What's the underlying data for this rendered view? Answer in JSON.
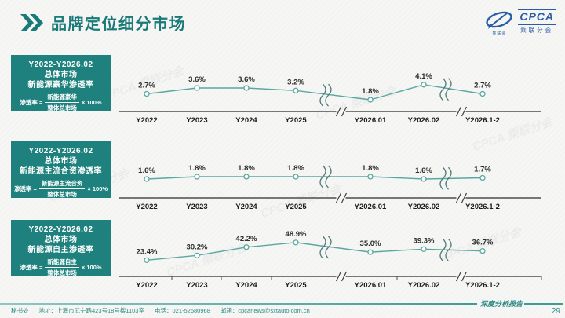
{
  "header": {
    "title": "品牌定位细分市场"
  },
  "logo": {
    "name": "CPCA",
    "subtitle": "乘联分会",
    "swoosh_label": "乘联会"
  },
  "watermark": "CPCA 乘联分会",
  "colors": {
    "teal_box": "#1E817D",
    "title_teal": "#1A7A78",
    "line": "#5AA7A1",
    "axis": "#4d4d4d",
    "break_mark": "#4E7A78",
    "footer_teal": "#2E8B88",
    "logo_blue": "#2A5DA8",
    "background": "#f6f6f4"
  },
  "sections": [
    {
      "box": {
        "period": "Y2022-Y2026.02",
        "market": "总体市场",
        "metric": "新能源豪华渗透率",
        "formula_prefix": "渗透率 =",
        "numerator": "新能源豪华",
        "denominator": "整体总市场",
        "suffix": "× 100%"
      }
    },
    {
      "box": {
        "period": "Y2022-Y2026.02",
        "market": "总体市场",
        "metric": "新能源主流合资渗透率",
        "formula_prefix": "渗透率 =",
        "numerator": "新能源主流合资",
        "denominator": "整体总市场",
        "suffix": "× 100%"
      }
    },
    {
      "box": {
        "period": "Y2022-Y2026.02",
        "market": "总体市场",
        "metric": "新能源自主渗透率",
        "formula_prefix": "渗透率 =",
        "numerator": "新能源自主",
        "denominator": "整体总市场",
        "suffix": "× 100%"
      }
    }
  ],
  "chart_data": [
    {
      "type": "line",
      "title": "Y2022-Y2026.02 总体市场 新能源豪华渗透率",
      "categories": [
        "Y2022",
        "Y2023",
        "Y2024",
        "Y2025",
        "Y2026.01",
        "Y2026.02",
        "Y2026.1-2"
      ],
      "values": [
        2.7,
        3.6,
        3.6,
        3.2,
        1.8,
        4.1,
        2.7
      ],
      "labels": [
        "2.7%",
        "3.6%",
        "3.6%",
        "3.2%",
        "1.8%",
        "4.1%",
        "2.7%"
      ],
      "ylim": [
        0,
        9
      ],
      "axis_breaks_after": [
        3,
        5
      ],
      "ticks": false,
      "grid": false,
      "legend": "none"
    },
    {
      "type": "line",
      "title": "Y2022-Y2026.02 总体市场 新能源主流合资渗透率",
      "categories": [
        "Y2022",
        "Y2023",
        "Y2024",
        "Y2025",
        "Y2026.01",
        "Y2026.02",
        "Y2026.1-2"
      ],
      "values": [
        1.6,
        1.8,
        1.8,
        1.8,
        1.8,
        1.6,
        1.7
      ],
      "labels": [
        "1.6%",
        "1.8%",
        "1.8%",
        "1.8%",
        "1.8%",
        "1.6%",
        "1.7%"
      ],
      "ylim": [
        0,
        5
      ],
      "axis_breaks_after": [
        3,
        5
      ],
      "ticks": false,
      "grid": false,
      "legend": "none"
    },
    {
      "type": "line",
      "title": "Y2022-Y2026.02 总体市场 新能源自主渗透率",
      "categories": [
        "Y2022",
        "Y2023",
        "Y2024",
        "Y2025",
        "Y2026.01",
        "Y2026.02",
        "Y2026.1-2"
      ],
      "values": [
        23.4,
        30.2,
        42.2,
        48.9,
        35.0,
        39.3,
        36.7
      ],
      "labels": [
        "23.4%",
        "30.2%",
        "42.2%",
        "48.9%",
        "35.0%",
        "39.3%",
        "36.7%"
      ],
      "ylim": [
        0,
        85
      ],
      "axis_breaks_after": [
        3,
        5
      ],
      "ticks": true,
      "grid": false,
      "legend": "none"
    }
  ],
  "footer": {
    "items": [
      "秘书处",
      "地址：上海市武宁路423号18号楼1103室",
      "电话：021-52680968",
      "邮箱：cpcanews@sxtauto.com.cn"
    ],
    "report_label": "深度分析报告",
    "page": "29"
  }
}
